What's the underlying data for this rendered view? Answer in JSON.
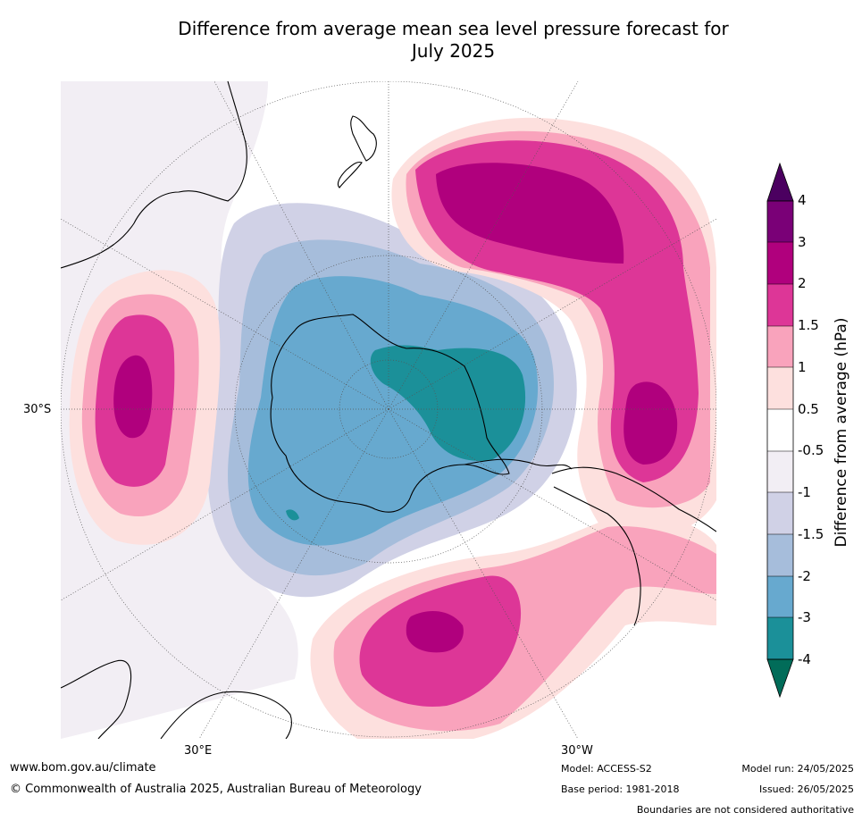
{
  "title_line1": "Difference from average mean sea level pressure forecast for",
  "title_line2": "July 2025",
  "map_labels": {
    "lat_30s": "30°S",
    "lon_30e": "30°E",
    "lon_30w": "30°W"
  },
  "colorbar": {
    "label": "Difference from average (hPa)",
    "ticks": [
      "4",
      "3",
      "2",
      "1.5",
      "1",
      "0.5",
      "-0.5",
      "-1",
      "-1.5",
      "-2",
      "-3",
      "-4"
    ],
    "colors": [
      "#4b0060",
      "#7a0077",
      "#b0007d",
      "#dd3697",
      "#f9a3bc",
      "#fde0de",
      "#ffffff",
      "#f2eef4",
      "#d0d1e6",
      "#a6bddb",
      "#67a9cf",
      "#1b9099",
      "#016c59"
    ]
  },
  "footer": {
    "website": "www.bom.gov.au/climate",
    "copyright": "© Commonwealth of Australia 2025, Australian Bureau of Meteorology",
    "model": "Model: ACCESS-S2",
    "base_period": "Base period: 1981-2018",
    "model_run": "Model run: 24/05/2025",
    "issued": "Issued: 26/05/2025",
    "disclaimer": "Boundaries are not considered authoritative"
  }
}
